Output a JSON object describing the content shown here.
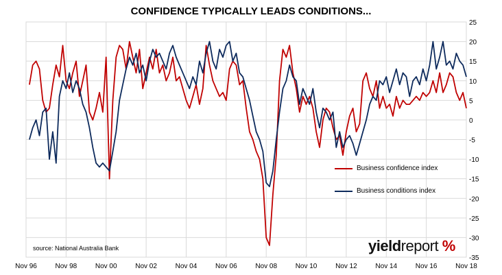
{
  "chart_data": {
    "type": "line",
    "title": "CONFIDENCE TYPICALLY LEADS CONDITIONS...",
    "xlabel": "",
    "ylabel": "",
    "x_tick_labels": [
      "Nov 96",
      "Nov 98",
      "Nov 00",
      "Nov 02",
      "Nov 04",
      "Nov 06",
      "Nov 08",
      "Nov 10",
      "Nov 12",
      "Nov 14",
      "Nov 16",
      "Nov 18"
    ],
    "x_range": [
      "1996-11",
      "2018-11"
    ],
    "ylim": [
      -35,
      25
    ],
    "y_ticks": [
      25,
      20,
      15,
      10,
      5,
      0,
      -5,
      -10,
      -15,
      -20,
      -25,
      -30,
      -35
    ],
    "y_axis_position": "right",
    "grid": true,
    "legend_position": "right-middle",
    "source": "source: National Australia Bank",
    "logo": {
      "part1": "yield",
      "part2": "report",
      "part3": "%"
    },
    "colors": {
      "confidence": "#c00000",
      "conditions": "#0d2a5c",
      "grid": "#d9d9d9"
    },
    "series": [
      {
        "name": "Business confidence index",
        "color": "#c00000",
        "points": [
          [
            "1997-01",
            9
          ],
          [
            "1997-03",
            14
          ],
          [
            "1997-05",
            15
          ],
          [
            "1997-07",
            13
          ],
          [
            "1997-09",
            5
          ],
          [
            "1997-11",
            2
          ],
          [
            "1998-01",
            3
          ],
          [
            "1998-03",
            9
          ],
          [
            "1998-05",
            14
          ],
          [
            "1998-07",
            11
          ],
          [
            "1998-09",
            19
          ],
          [
            "1998-11",
            10
          ],
          [
            "1999-01",
            8
          ],
          [
            "1999-03",
            12
          ],
          [
            "1999-05",
            15
          ],
          [
            "1999-07",
            6
          ],
          [
            "1999-09",
            10
          ],
          [
            "1999-11",
            14
          ],
          [
            "2000-01",
            2
          ],
          [
            "2000-03",
            0
          ],
          [
            "2000-05",
            3
          ],
          [
            "2000-07",
            7
          ],
          [
            "2000-09",
            2
          ],
          [
            "2000-11",
            16
          ],
          [
            "2001-01",
            -15
          ],
          [
            "2001-03",
            5
          ],
          [
            "2001-05",
            16
          ],
          [
            "2001-07",
            19
          ],
          [
            "2001-09",
            18
          ],
          [
            "2001-11",
            13
          ],
          [
            "2002-01",
            20
          ],
          [
            "2002-03",
            16
          ],
          [
            "2002-05",
            12
          ],
          [
            "2002-07",
            18
          ],
          [
            "2002-09",
            8
          ],
          [
            "2002-11",
            12
          ],
          [
            "2003-01",
            16
          ],
          [
            "2003-03",
            13
          ],
          [
            "2003-05",
            18
          ],
          [
            "2003-07",
            12
          ],
          [
            "2003-09",
            14
          ],
          [
            "2003-11",
            10
          ],
          [
            "2004-01",
            12
          ],
          [
            "2004-03",
            16
          ],
          [
            "2004-05",
            10
          ],
          [
            "2004-07",
            11
          ],
          [
            "2004-09",
            8
          ],
          [
            "2004-11",
            5
          ],
          [
            "2005-01",
            3
          ],
          [
            "2005-03",
            6
          ],
          [
            "2005-05",
            9
          ],
          [
            "2005-07",
            4
          ],
          [
            "2005-09",
            8
          ],
          [
            "2005-11",
            19
          ],
          [
            "2006-01",
            14
          ],
          [
            "2006-03",
            10
          ],
          [
            "2006-05",
            8
          ],
          [
            "2006-07",
            6
          ],
          [
            "2006-09",
            7
          ],
          [
            "2006-11",
            5
          ],
          [
            "2007-01",
            13
          ],
          [
            "2007-03",
            15
          ],
          [
            "2007-05",
            14
          ],
          [
            "2007-07",
            9
          ],
          [
            "2007-09",
            10
          ],
          [
            "2007-11",
            3
          ],
          [
            "2008-01",
            -3
          ],
          [
            "2008-03",
            -5
          ],
          [
            "2008-05",
            -8
          ],
          [
            "2008-07",
            -10
          ],
          [
            "2008-09",
            -15
          ],
          [
            "2008-11",
            -30
          ],
          [
            "2009-01",
            -32
          ],
          [
            "2009-03",
            -19
          ],
          [
            "2009-05",
            -9
          ],
          [
            "2009-07",
            10
          ],
          [
            "2009-09",
            18
          ],
          [
            "2009-11",
            16
          ],
          [
            "2010-01",
            19
          ],
          [
            "2010-03",
            12
          ],
          [
            "2010-05",
            8
          ],
          [
            "2010-07",
            2
          ],
          [
            "2010-09",
            6
          ],
          [
            "2010-11",
            4
          ],
          [
            "2011-01",
            6
          ],
          [
            "2011-03",
            3
          ],
          [
            "2011-05",
            -3
          ],
          [
            "2011-07",
            -7
          ],
          [
            "2011-09",
            0
          ],
          [
            "2011-11",
            3
          ],
          [
            "2012-01",
            2
          ],
          [
            "2012-03",
            -2
          ],
          [
            "2012-05",
            -5
          ],
          [
            "2012-07",
            -4
          ],
          [
            "2012-09",
            -9
          ],
          [
            "2012-11",
            -3
          ],
          [
            "2013-01",
            1
          ],
          [
            "2013-03",
            3
          ],
          [
            "2013-05",
            -3
          ],
          [
            "2013-07",
            -1
          ],
          [
            "2013-09",
            10
          ],
          [
            "2013-11",
            12
          ],
          [
            "2014-01",
            8
          ],
          [
            "2014-03",
            6
          ],
          [
            "2014-05",
            10
          ],
          [
            "2014-07",
            3
          ],
          [
            "2014-09",
            6
          ],
          [
            "2014-11",
            3
          ],
          [
            "2015-01",
            4
          ],
          [
            "2015-03",
            1
          ],
          [
            "2015-05",
            6
          ],
          [
            "2015-07",
            3
          ],
          [
            "2015-09",
            5
          ],
          [
            "2015-11",
            4
          ],
          [
            "2016-01",
            4
          ],
          [
            "2016-03",
            5
          ],
          [
            "2016-05",
            6
          ],
          [
            "2016-07",
            5
          ],
          [
            "2016-09",
            7
          ],
          [
            "2016-11",
            6
          ],
          [
            "2017-01",
            7
          ],
          [
            "2017-03",
            10
          ],
          [
            "2017-05",
            7
          ],
          [
            "2017-07",
            12
          ],
          [
            "2017-09",
            7
          ],
          [
            "2017-11",
            9
          ],
          [
            "2018-01",
            12
          ],
          [
            "2018-03",
            11
          ],
          [
            "2018-05",
            7
          ],
          [
            "2018-07",
            5
          ],
          [
            "2018-09",
            7
          ],
          [
            "2018-11",
            3
          ]
        ]
      },
      {
        "name": "Business conditions index",
        "color": "#0d2a5c",
        "points": [
          [
            "1997-01",
            -5
          ],
          [
            "1997-03",
            -2
          ],
          [
            "1997-05",
            0
          ],
          [
            "1997-07",
            -4
          ],
          [
            "1997-09",
            2
          ],
          [
            "1997-11",
            3
          ],
          [
            "1998-01",
            -10
          ],
          [
            "1998-03",
            -3
          ],
          [
            "1998-05",
            -11
          ],
          [
            "1998-07",
            6
          ],
          [
            "1998-09",
            10
          ],
          [
            "1998-11",
            8
          ],
          [
            "1999-01",
            12
          ],
          [
            "1999-03",
            7
          ],
          [
            "1999-05",
            10
          ],
          [
            "1999-07",
            8
          ],
          [
            "1999-09",
            4
          ],
          [
            "1999-11",
            2
          ],
          [
            "2000-01",
            -2
          ],
          [
            "2000-03",
            -7
          ],
          [
            "2000-05",
            -11
          ],
          [
            "2000-07",
            -12
          ],
          [
            "2000-09",
            -11
          ],
          [
            "2000-11",
            -12
          ],
          [
            "2001-01",
            -13
          ],
          [
            "2001-03",
            -8
          ],
          [
            "2001-05",
            -3
          ],
          [
            "2001-07",
            5
          ],
          [
            "2001-09",
            9
          ],
          [
            "2001-11",
            13
          ],
          [
            "2002-01",
            16
          ],
          [
            "2002-03",
            14
          ],
          [
            "2002-05",
            17
          ],
          [
            "2002-07",
            12
          ],
          [
            "2002-09",
            14
          ],
          [
            "2002-11",
            10
          ],
          [
            "2003-01",
            15
          ],
          [
            "2003-03",
            18
          ],
          [
            "2003-05",
            16
          ],
          [
            "2003-07",
            17
          ],
          [
            "2003-09",
            15
          ],
          [
            "2003-11",
            13
          ],
          [
            "2004-01",
            17
          ],
          [
            "2004-03",
            19
          ],
          [
            "2004-05",
            16
          ],
          [
            "2004-07",
            14
          ],
          [
            "2004-09",
            12
          ],
          [
            "2004-11",
            10
          ],
          [
            "2005-01",
            8
          ],
          [
            "2005-03",
            11
          ],
          [
            "2005-05",
            9
          ],
          [
            "2005-07",
            15
          ],
          [
            "2005-09",
            12
          ],
          [
            "2005-11",
            17
          ],
          [
            "2006-01",
            20
          ],
          [
            "2006-03",
            15
          ],
          [
            "2006-05",
            13
          ],
          [
            "2006-07",
            18
          ],
          [
            "2006-09",
            16
          ],
          [
            "2006-11",
            19
          ],
          [
            "2007-01",
            20
          ],
          [
            "2007-03",
            15
          ],
          [
            "2007-05",
            17
          ],
          [
            "2007-07",
            12
          ],
          [
            "2007-09",
            11
          ],
          [
            "2007-11",
            8
          ],
          [
            "2008-01",
            5
          ],
          [
            "2008-03",
            1
          ],
          [
            "2008-05",
            -3
          ],
          [
            "2008-07",
            -5
          ],
          [
            "2008-09",
            -8
          ],
          [
            "2008-11",
            -16
          ],
          [
            "2009-01",
            -17
          ],
          [
            "2009-03",
            -13
          ],
          [
            "2009-05",
            -5
          ],
          [
            "2009-07",
            2
          ],
          [
            "2009-09",
            8
          ],
          [
            "2009-11",
            10
          ],
          [
            "2010-01",
            14
          ],
          [
            "2010-03",
            11
          ],
          [
            "2010-05",
            10
          ],
          [
            "2010-07",
            4
          ],
          [
            "2010-09",
            8
          ],
          [
            "2010-11",
            6
          ],
          [
            "2011-01",
            4
          ],
          [
            "2011-03",
            8
          ],
          [
            "2011-05",
            2
          ],
          [
            "2011-07",
            -2
          ],
          [
            "2011-09",
            3
          ],
          [
            "2011-11",
            2
          ],
          [
            "2012-01",
            0
          ],
          [
            "2012-03",
            2
          ],
          [
            "2012-05",
            -7
          ],
          [
            "2012-07",
            -3
          ],
          [
            "2012-09",
            -7
          ],
          [
            "2012-11",
            -5
          ],
          [
            "2013-01",
            -4
          ],
          [
            "2013-03",
            -6
          ],
          [
            "2013-05",
            -9
          ],
          [
            "2013-07",
            -6
          ],
          [
            "2013-09",
            -3
          ],
          [
            "2013-11",
            0
          ],
          [
            "2014-01",
            4
          ],
          [
            "2014-03",
            6
          ],
          [
            "2014-05",
            5
          ],
          [
            "2014-07",
            10
          ],
          [
            "2014-09",
            9
          ],
          [
            "2014-11",
            11
          ],
          [
            "2015-01",
            7
          ],
          [
            "2015-03",
            10
          ],
          [
            "2015-05",
            13
          ],
          [
            "2015-07",
            9
          ],
          [
            "2015-09",
            12
          ],
          [
            "2015-11",
            11
          ],
          [
            "2016-01",
            6
          ],
          [
            "2016-03",
            10
          ],
          [
            "2016-05",
            11
          ],
          [
            "2016-07",
            9
          ],
          [
            "2016-09",
            13
          ],
          [
            "2016-11",
            10
          ],
          [
            "2017-01",
            14
          ],
          [
            "2017-03",
            20
          ],
          [
            "2017-05",
            13
          ],
          [
            "2017-07",
            16
          ],
          [
            "2017-09",
            20
          ],
          [
            "2017-11",
            14
          ],
          [
            "2018-01",
            15
          ],
          [
            "2018-03",
            13
          ],
          [
            "2018-05",
            17
          ],
          [
            "2018-07",
            15
          ],
          [
            "2018-09",
            14
          ],
          [
            "2018-11",
            11
          ]
        ]
      }
    ]
  }
}
